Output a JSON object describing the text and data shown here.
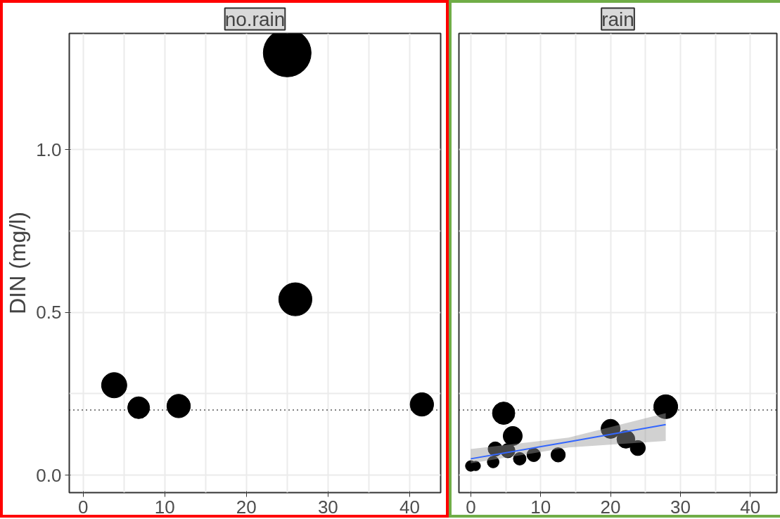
{
  "chart_data": [
    {
      "type": "bubble",
      "title": "no.rain",
      "ylabel": "DIN (mg/l)",
      "xlim": [
        -1.7,
        43.8
      ],
      "ylim": [
        -0.054,
        1.357
      ],
      "xticks": [
        0,
        10,
        20,
        30,
        40
      ],
      "yticks": [
        {
          "value": 0,
          "label": "0.0"
        },
        {
          "value": 0.5,
          "label": "0.5"
        },
        {
          "value": 1,
          "label": "1.0"
        }
      ],
      "grid": true,
      "marker": "circle",
      "series": [
        {
          "color": "#000000",
          "x": [
            3.8,
            6.8,
            11.7,
            25,
            26,
            41.5
          ],
          "values": [
            0.276,
            0.207,
            0.212,
            1.297,
            0.54,
            0.217
          ],
          "sizes": [
            0.28,
            0.21,
            0.24,
            1,
            0.48,
            0.24
          ]
        }
      ],
      "ref_lines": [
        {
          "axis": "y",
          "value": 0.2,
          "label": null,
          "color": "#000000",
          "line_style": "dotted"
        }
      ]
    },
    {
      "type": "bubble",
      "title": "rain",
      "xlim": [
        -1.7,
        43.8
      ],
      "ylim": [
        -0.054,
        1.357
      ],
      "xticks": [
        0,
        10,
        20,
        30,
        40
      ],
      "yticks": [
        {
          "value": 0,
          "label": null
        },
        {
          "value": 0.5,
          "label": null
        },
        {
          "value": 1,
          "label": null
        }
      ],
      "grid": true,
      "marker": "circle",
      "tick_labels": "x",
      "series": [
        {
          "color": "#000000",
          "x": [
            0,
            0.7,
            3.2,
            3.5,
            4.7,
            6.0,
            5.3,
            7.0,
            9.0,
            12.5,
            20,
            22.2,
            23.9,
            27.9
          ],
          "values": [
            0.028,
            0.028,
            0.04,
            0.08,
            0.19,
            0.12,
            0.075,
            0.05,
            0.062,
            0.062,
            0.142,
            0.11,
            0.083,
            0.21
          ],
          "sizes": [
            0.2,
            0.16,
            0.24,
            0.36,
            0.88,
            0.64,
            0.36,
            0.28,
            0.32,
            0.36,
            0.64,
            0.56,
            0.4,
            1
          ]
        },
        {
          "type": "line",
          "marker": "none",
          "color": "#3366ff",
          "x": [
            0,
            14,
            27.9
          ],
          "values": [
            0.05,
            0.102,
            0.155
          ],
          "lower": [
            0.036,
            0.085,
            0.105
          ],
          "upper": [
            0.08,
            0.115,
            0.19
          ]
        }
      ],
      "ref_lines": [
        {
          "axis": "y",
          "value": 0.2,
          "label": null,
          "color": "#000000",
          "line_style": "dotted"
        }
      ]
    }
  ]
}
